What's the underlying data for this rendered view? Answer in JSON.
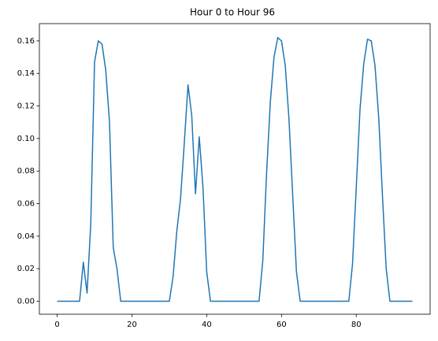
{
  "chart_data": {
    "type": "line",
    "title": "Hour 0 to Hour 96",
    "x": [
      0,
      1,
      2,
      3,
      4,
      5,
      6,
      7,
      8,
      9,
      10,
      11,
      12,
      13,
      14,
      15,
      16,
      17,
      18,
      19,
      20,
      21,
      22,
      23,
      24,
      25,
      26,
      27,
      28,
      29,
      30,
      31,
      32,
      33,
      34,
      35,
      36,
      37,
      38,
      39,
      40,
      41,
      42,
      43,
      44,
      45,
      46,
      47,
      48,
      49,
      50,
      51,
      52,
      53,
      54,
      55,
      56,
      57,
      58,
      59,
      60,
      61,
      62,
      63,
      64,
      65,
      66,
      67,
      68,
      69,
      70,
      71,
      72,
      73,
      74,
      75,
      76,
      77,
      78,
      79,
      80,
      81,
      82,
      83,
      84,
      85,
      86,
      87,
      88,
      89,
      90,
      91,
      92,
      93,
      94,
      95
    ],
    "values": [
      0,
      0,
      0,
      0,
      0,
      0,
      0,
      0.024,
      0.005,
      0.048,
      0.147,
      0.16,
      0.158,
      0.142,
      0.11,
      0.033,
      0.02,
      0,
      0,
      0,
      0,
      0,
      0,
      0,
      0,
      0,
      0,
      0,
      0,
      0,
      0,
      0.015,
      0.043,
      0.063,
      0.097,
      0.133,
      0.114,
      0.066,
      0.101,
      0.07,
      0.018,
      0,
      0,
      0,
      0,
      0,
      0,
      0,
      0,
      0,
      0,
      0,
      0,
      0,
      0,
      0.025,
      0.078,
      0.122,
      0.15,
      0.162,
      0.16,
      0.145,
      0.112,
      0.065,
      0.018,
      0,
      0,
      0,
      0,
      0,
      0,
      0,
      0,
      0,
      0,
      0,
      0,
      0,
      0,
      0.023,
      0.07,
      0.118,
      0.146,
      0.161,
      0.16,
      0.145,
      0.113,
      0.065,
      0.02,
      0,
      0,
      0,
      0,
      0,
      0,
      0
    ],
    "color": "#1f77b4",
    "xlim": [
      -4.75,
      99.75
    ],
    "xticks": [
      0,
      20,
      40,
      60,
      80
    ],
    "ylim": [
      -0.008,
      0.1706
    ],
    "yticks": [
      {
        "value": 0,
        "label": "0.00"
      },
      {
        "value": 0.02,
        "label": "0.02"
      },
      {
        "value": 0.04,
        "label": "0.04"
      },
      {
        "value": 0.06,
        "label": "0.06"
      },
      {
        "value": 0.08,
        "label": "0.08"
      },
      {
        "value": 0.1,
        "label": "0.10"
      },
      {
        "value": 0.12,
        "label": "0.12"
      },
      {
        "value": 0.14,
        "label": "0.14"
      },
      {
        "value": 0.16,
        "label": "0.16"
      }
    ],
    "grid": false
  }
}
